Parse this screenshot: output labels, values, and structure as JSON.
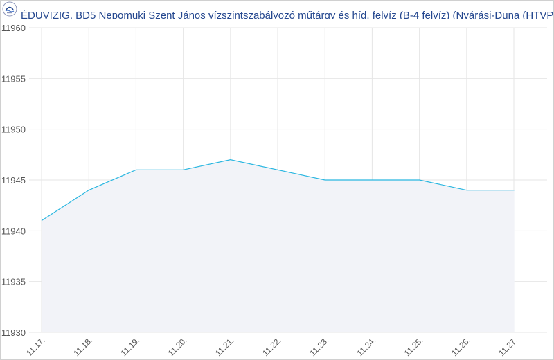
{
  "header": {
    "title": "ÉDUVIZIG, BD5 Nepomuki Szent János vízszintszabályozó műtárgy és híd, felvíz (B-4 felvíz) (Nyárási-Duna (HTVP",
    "logo_icon": "eduvizig-logo-icon"
  },
  "colors": {
    "line": "#29b6e0",
    "area": "#f2f3f8",
    "grid": "#e6e6e6",
    "title": "#24478f"
  },
  "chart_data": {
    "type": "area",
    "title": "ÉDUVIZIG, BD5 Nepomuki Szent János vízszintszabályozó műtárgy és híd, felvíz (B-4 felvíz) (Nyárási-Duna (HTVP",
    "xlabel": "",
    "ylabel": "",
    "categories": [
      "11.17.",
      "11.18.",
      "11.19.",
      "11.20.",
      "11.21.",
      "11.22.",
      "11.23.",
      "11.24.",
      "11.25.",
      "11.26.",
      "11.27."
    ],
    "series": [
      {
        "x": [
          "11.17.",
          "11.18.",
          "11.19.",
          "11.20.",
          "11.21.",
          "11.22.",
          "11.23.",
          "11.24.",
          "11.25.",
          "11.26.",
          "11.27.",
          "11.27."
        ],
        "values": [
          11941,
          11944,
          11946,
          11946,
          11947,
          11946,
          11945,
          11945,
          11945,
          11944,
          11944,
          11944
        ]
      }
    ],
    "ylim": [
      11930,
      11960
    ],
    "yticks": [
      11930,
      11935,
      11940,
      11945,
      11950,
      11955,
      11960
    ],
    "grid": true,
    "legend": "none"
  }
}
